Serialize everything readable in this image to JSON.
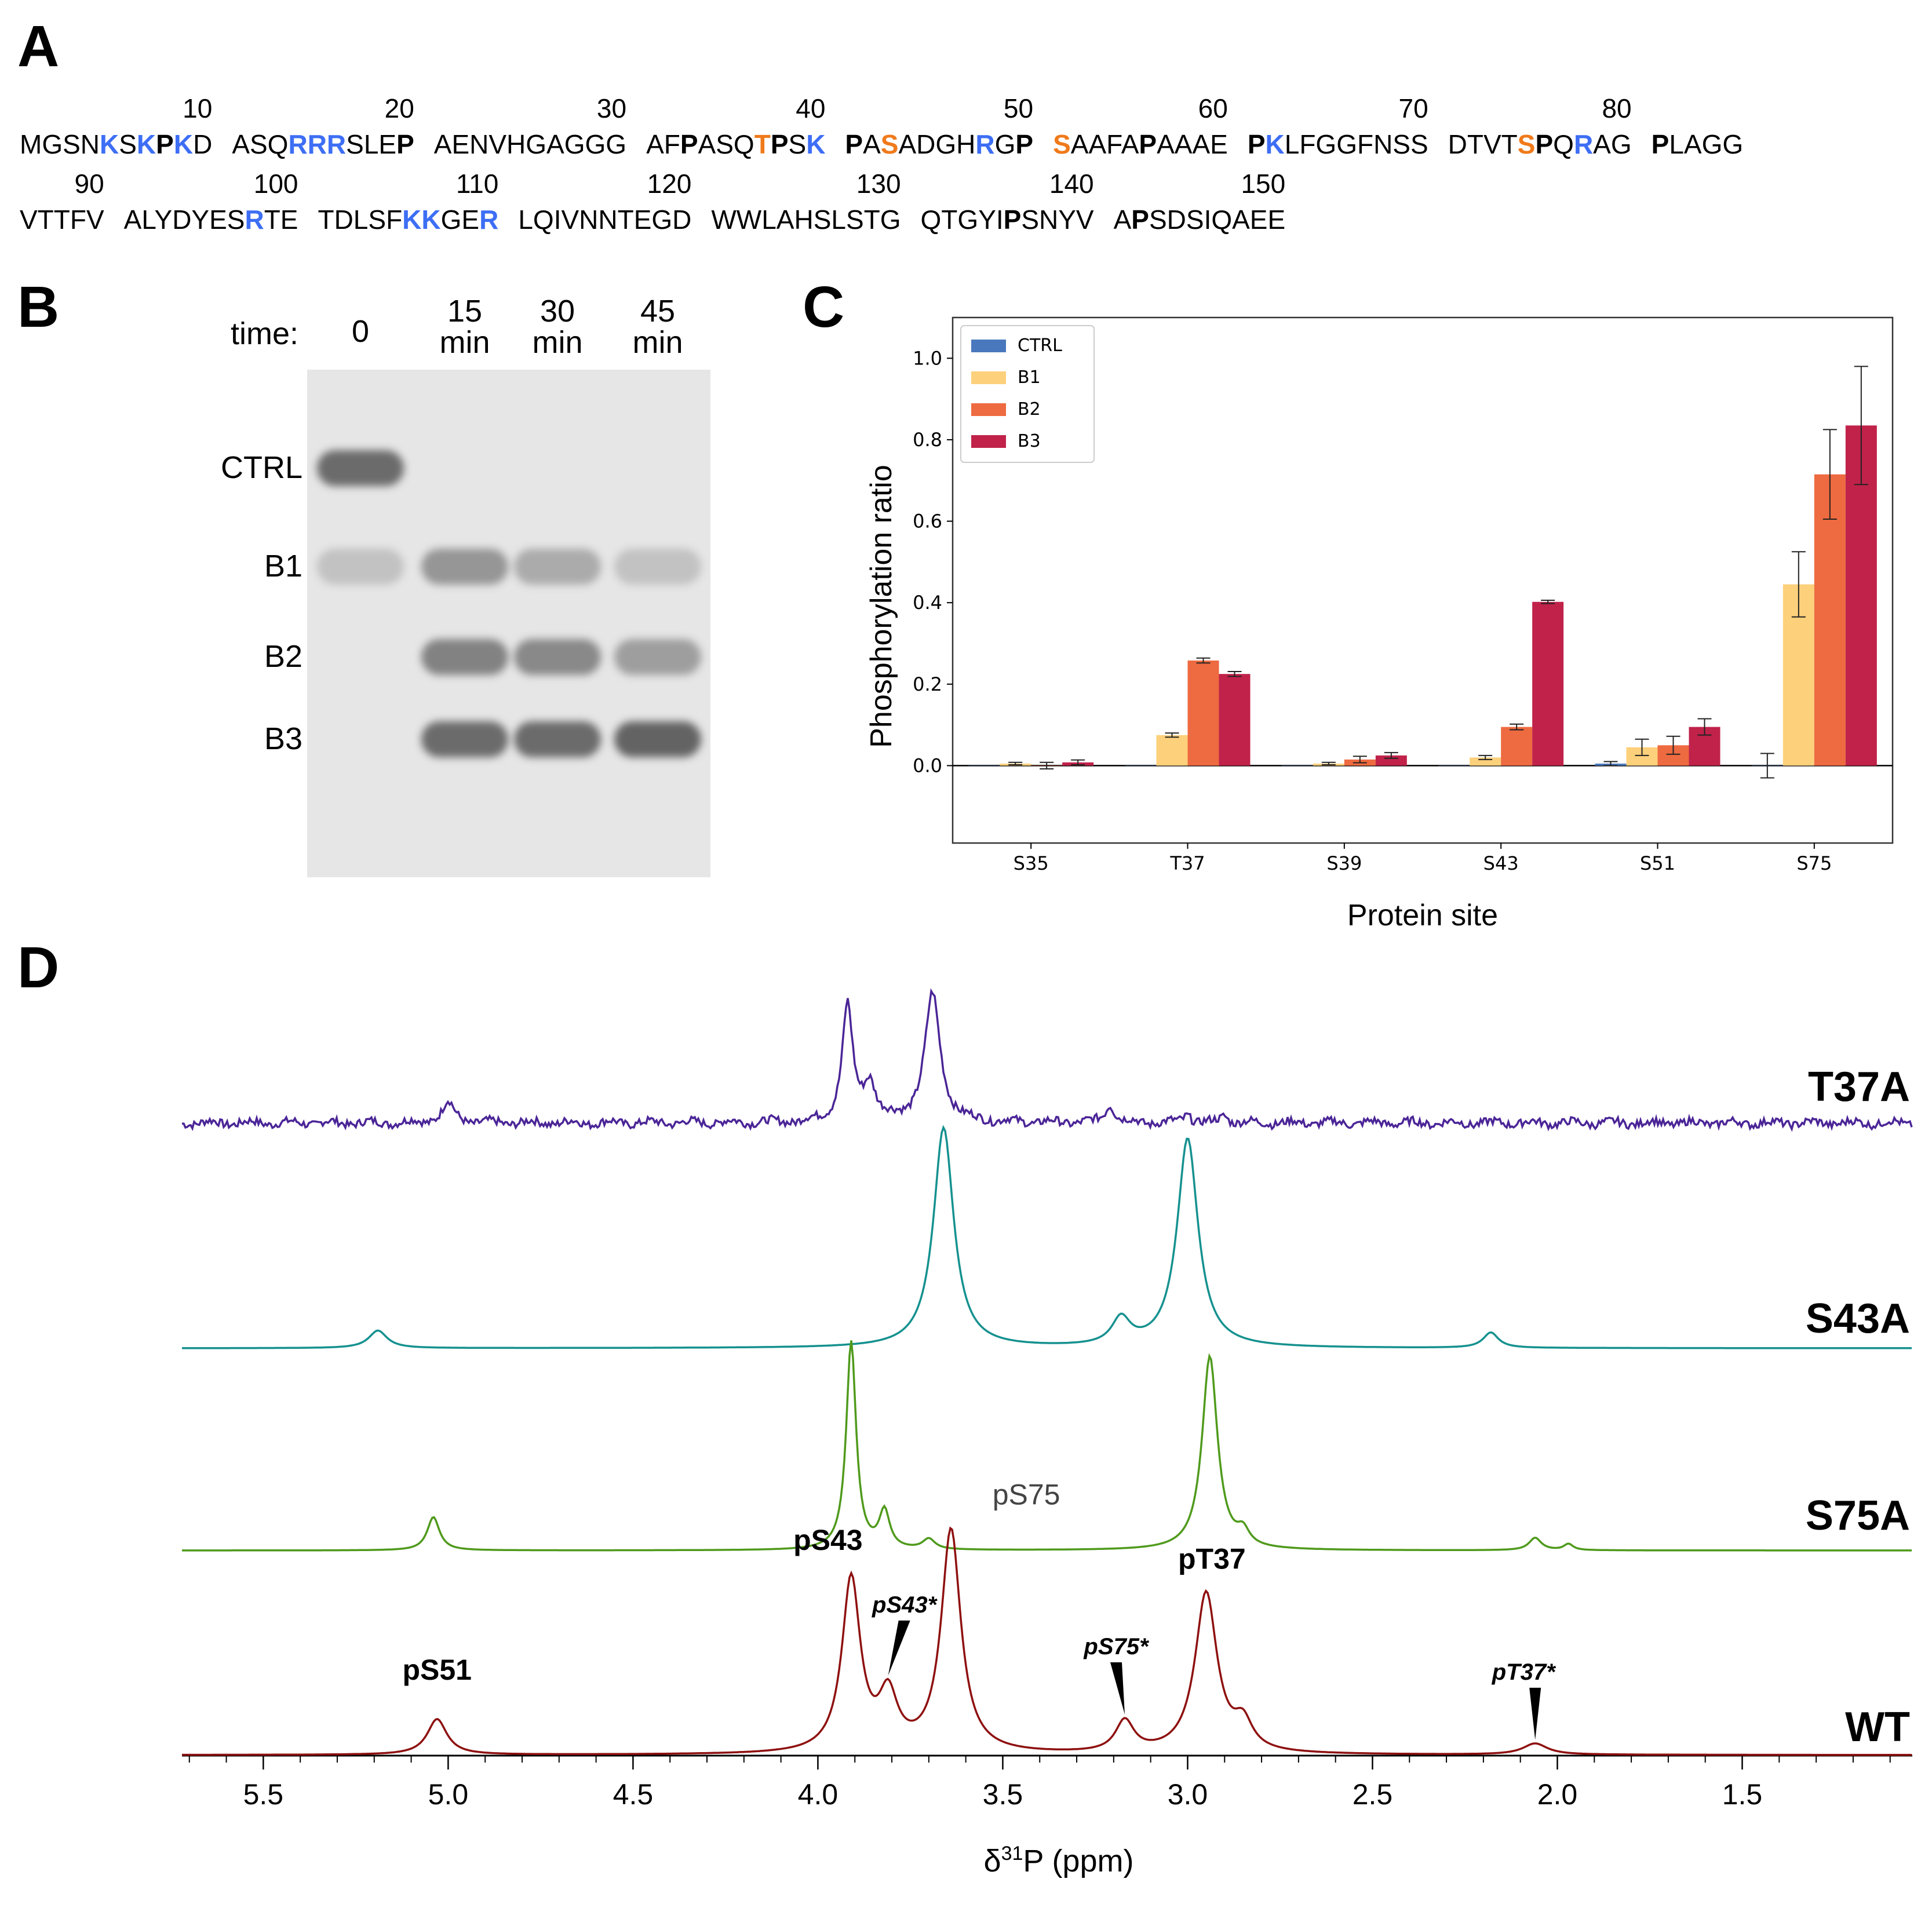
{
  "panels": {
    "a": "A",
    "b": "B",
    "c": "C",
    "d": "D"
  },
  "sequence": {
    "rows": [
      [
        {
          "num": "10",
          "parts": [
            [
              "MGSN",
              ""
            ],
            [
              "K",
              "b"
            ],
            [
              "S",
              ""
            ],
            [
              "K",
              "b"
            ],
            [
              "P",
              "p"
            ],
            [
              "K",
              "b"
            ],
            [
              "D",
              ""
            ]
          ]
        },
        {
          "num": "20",
          "parts": [
            [
              "ASQ",
              ""
            ],
            [
              "RRR",
              "b"
            ],
            [
              "SLE",
              ""
            ],
            [
              "P",
              "p"
            ]
          ]
        },
        {
          "num": "30",
          "parts": [
            [
              "AENVHGAGGG",
              ""
            ]
          ]
        },
        {
          "num": "40",
          "parts": [
            [
              "AF",
              ""
            ],
            [
              "P",
              "p"
            ],
            [
              "ASQ",
              ""
            ],
            [
              "T",
              "o"
            ],
            [
              "P",
              "p"
            ],
            [
              "S",
              ""
            ],
            [
              "K",
              "b"
            ]
          ]
        },
        {
          "num": "50",
          "parts": [
            [
              "P",
              "p"
            ],
            [
              "A",
              ""
            ],
            [
              "S",
              "o"
            ],
            [
              "ADGH",
              ""
            ],
            [
              "R",
              "b"
            ],
            [
              "G",
              ""
            ],
            [
              "P",
              "p"
            ]
          ]
        },
        {
          "num": "60",
          "parts": [
            [
              "S",
              "o"
            ],
            [
              "AAFA",
              ""
            ],
            [
              "P",
              "p"
            ],
            [
              "AAAE",
              ""
            ]
          ]
        },
        {
          "num": "70",
          "parts": [
            [
              "P",
              "p"
            ],
            [
              "K",
              "b"
            ],
            [
              "LFGGFNSS",
              ""
            ]
          ]
        },
        {
          "num": "80",
          "parts": [
            [
              "DTVT",
              ""
            ],
            [
              "S",
              "o"
            ],
            [
              "P",
              "p"
            ],
            [
              "Q",
              ""
            ],
            [
              "R",
              "b"
            ],
            [
              "AG",
              ""
            ]
          ]
        },
        {
          "num": "",
          "parts": [
            [
              "P",
              "p"
            ],
            [
              "LAGG",
              ""
            ]
          ]
        }
      ],
      [
        {
          "num": "90",
          "parts": [
            [
              "VTTFV",
              ""
            ]
          ]
        },
        {
          "num": "100",
          "parts": [
            [
              "ALYDYES",
              ""
            ],
            [
              "R",
              "b"
            ],
            [
              "TE",
              ""
            ]
          ]
        },
        {
          "num": "110",
          "parts": [
            [
              "TDLSF",
              ""
            ],
            [
              "KK",
              "b"
            ],
            [
              "GE",
              ""
            ],
            [
              "R",
              "b"
            ]
          ]
        },
        {
          "num": "120",
          "parts": [
            [
              "LQIVNNTEGD",
              ""
            ]
          ]
        },
        {
          "num": "130",
          "parts": [
            [
              "WWLAHSLSTG",
              ""
            ]
          ]
        },
        {
          "num": "140",
          "parts": [
            [
              "QTGYI",
              ""
            ],
            [
              "P",
              "p"
            ],
            [
              "SNYV",
              ""
            ]
          ]
        },
        {
          "num": "150",
          "parts": [
            [
              "A",
              ""
            ],
            [
              "P",
              "p"
            ],
            [
              "SDSIQAEE",
              ""
            ]
          ]
        }
      ]
    ]
  },
  "gel": {
    "time_label": "time:",
    "lanes": [
      {
        "line1": "0",
        "line2": ""
      },
      {
        "line1": "15",
        "line2": "min"
      },
      {
        "line1": "30",
        "line2": "min"
      },
      {
        "line1": "45",
        "line2": "min"
      }
    ],
    "band_labels": [
      "CTRL",
      "B1",
      "B2",
      "B3"
    ],
    "band_intensity": [
      [
        0.85,
        0.0,
        0.0,
        0.0
      ],
      [
        0.25,
        0.55,
        0.4,
        0.25
      ],
      [
        0.0,
        0.7,
        0.65,
        0.5
      ],
      [
        0.0,
        0.85,
        0.85,
        0.9
      ]
    ]
  },
  "chart_data": [
    {
      "type": "bar",
      "xlabel": "Protein site",
      "ylabel": "Phosphorylation ratio",
      "categories": [
        "S35",
        "T37",
        "S39",
        "S43",
        "S51",
        "S75"
      ],
      "ylim": [
        -0.19,
        1.1
      ],
      "yticks": [
        "0.0",
        "0.2",
        "0.4",
        "0.6",
        "0.8",
        "1.0"
      ],
      "legend_position": "top-left",
      "series": [
        {
          "name": "CTRL",
          "color": "#4a78bd",
          "values": [
            0.0,
            0.0,
            0.0,
            0.0,
            0.005,
            0.0
          ],
          "errors": [
            0.0,
            0.0,
            0.0,
            0.0,
            0.005,
            0.0
          ]
        },
        {
          "name": "B1",
          "color": "#fdd07b",
          "values": [
            0.005,
            0.075,
            0.005,
            0.02,
            0.045,
            0.445
          ],
          "errors": [
            0.003,
            0.005,
            0.003,
            0.005,
            0.02,
            0.08
          ]
        },
        {
          "name": "B2",
          "color": "#ee6a40",
          "values": [
            0.0,
            0.258,
            0.015,
            0.095,
            0.05,
            0.715
          ],
          "errors": [
            0.008,
            0.006,
            0.008,
            0.007,
            0.022,
            0.11
          ]
        },
        {
          "name": "B3",
          "color": "#c0224a",
          "values": [
            0.008,
            0.225,
            0.025,
            0.402,
            0.095,
            0.835
          ],
          "errors": [
            0.006,
            0.006,
            0.007,
            0.004,
            0.02,
            0.145
          ]
        }
      ],
      "special_errorbars": [
        {
          "category": "S75",
          "value": 0.0,
          "error": 0.03
        }
      ]
    },
    {
      "type": "line",
      "xlabel_parts": [
        "δ",
        "31",
        "P (ppm)"
      ],
      "xlim": [
        5.72,
        1.04
      ],
      "xticks": [
        "5.5",
        "5.0",
        "4.5",
        "4.0",
        "3.5",
        "3.0",
        "2.5",
        "2.0",
        "1.5"
      ],
      "series": [
        {
          "name": "T37A",
          "color": "#4b2597",
          "peaks": [
            [
              5.0,
              0.13,
              0.02
            ],
            [
              3.92,
              0.74,
              0.017
            ],
            [
              3.86,
              0.24,
              0.02
            ],
            [
              3.69,
              0.82,
              0.025
            ],
            [
              3.21,
              0.12,
              0.015
            ],
            [
              3.0,
              0.06,
              0.012
            ],
            [
              2.9,
              0.05,
              0.012
            ]
          ],
          "noise": 0.05
        },
        {
          "name": "S43A",
          "color": "#15918f",
          "peaks": [
            [
              5.19,
              0.08,
              0.03
            ],
            [
              3.66,
              1.0,
              0.033
            ],
            [
              3.18,
              0.12,
              0.03
            ],
            [
              3.0,
              0.95,
              0.034
            ],
            [
              2.18,
              0.07,
              0.025
            ]
          ],
          "noise": 0.0
        },
        {
          "name": "S75A",
          "color": "#4f9a1c",
          "peaks": [
            [
              5.04,
              0.16,
              0.02
            ],
            [
              3.91,
              1.0,
              0.016
            ],
            [
              3.82,
              0.18,
              0.017
            ],
            [
              3.7,
              0.05,
              0.02
            ],
            [
              2.94,
              0.93,
              0.025
            ],
            [
              2.85,
              0.07,
              0.02
            ],
            [
              2.06,
              0.06,
              0.02
            ],
            [
              1.97,
              0.03,
              0.015
            ]
          ],
          "noise": 0.0
        },
        {
          "name": "WT",
          "color": "#8e1010",
          "peaks": [
            [
              5.03,
              0.16,
              0.032
            ],
            [
              3.91,
              0.78,
              0.03
            ],
            [
              3.81,
              0.24,
              0.03
            ],
            [
              3.64,
              1.0,
              0.032
            ],
            [
              3.17,
              0.14,
              0.03
            ],
            [
              2.95,
              0.72,
              0.036
            ],
            [
              2.85,
              0.12,
              0.03
            ],
            [
              2.06,
              0.05,
              0.04
            ]
          ],
          "noise": 0.0
        }
      ],
      "annotations": [
        {
          "text": "pS51",
          "x": 5.03,
          "style": "bold"
        },
        {
          "text": "pS43",
          "x": 3.91,
          "style": "bold"
        },
        {
          "text": "pS43*",
          "x": 3.81,
          "style": "bold-italic"
        },
        {
          "text": "pS75",
          "x": 3.64,
          "style": "normal"
        },
        {
          "text": "pS75*",
          "x": 3.17,
          "style": "bold-italic"
        },
        {
          "text": "pT37",
          "x": 2.95,
          "style": "bold"
        },
        {
          "text": "pT37*",
          "x": 2.06,
          "style": "bold-italic"
        }
      ]
    }
  ]
}
